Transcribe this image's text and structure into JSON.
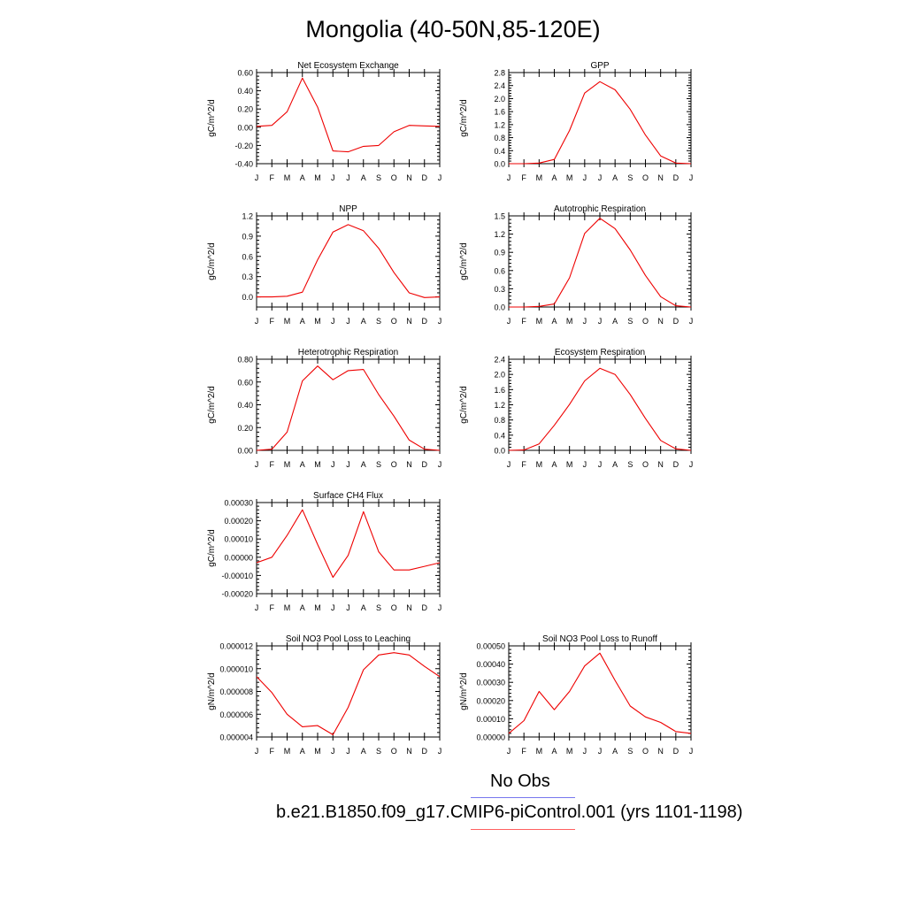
{
  "page": {
    "title": "Mongolia (40-50N,85-120E)"
  },
  "legend": {
    "entries": [
      {
        "label": "No Obs",
        "color": "#7777ee"
      },
      {
        "label": "b.e21.B1850.f09_g17.CMIP6-piControl.001 (yrs 1101-1198)",
        "color": "#ff6060"
      }
    ]
  },
  "line_color": "#ee0000",
  "chart_data": [
    {
      "type": "line",
      "title": "Net Ecosystem Exchange",
      "ylabel": "gC/m^2/d",
      "x": [
        "J",
        "F",
        "M",
        "A",
        "M",
        "J",
        "J",
        "A",
        "S",
        "O",
        "N",
        "D",
        "J"
      ],
      "ylim": [
        -0.4,
        0.6
      ],
      "yticks": [
        "-0.40",
        "-0.20",
        "0.00",
        "0.20",
        "0.40",
        "0.60"
      ],
      "series": [
        {
          "values": [
            0.01,
            0.02,
            0.17,
            0.54,
            0.22,
            -0.26,
            -0.27,
            -0.21,
            -0.2,
            -0.05,
            0.02,
            0.015,
            0.01
          ]
        }
      ]
    },
    {
      "type": "line",
      "title": "GPP",
      "ylabel": "gC/m^2/d",
      "x": [
        "J",
        "F",
        "M",
        "A",
        "M",
        "J",
        "J",
        "A",
        "S",
        "O",
        "N",
        "D",
        "J"
      ],
      "ylim": [
        0.0,
        2.8
      ],
      "yticks": [
        "0.0",
        "0.4",
        "0.8",
        "1.2",
        "1.6",
        "2.0",
        "2.4",
        "2.8"
      ],
      "series": [
        {
          "values": [
            0.0,
            0.0,
            0.02,
            0.13,
            1.02,
            2.17,
            2.52,
            2.27,
            1.67,
            0.88,
            0.24,
            0.02,
            0.0
          ]
        }
      ]
    },
    {
      "type": "line",
      "title": "NPP",
      "ylabel": "gC/m^2/d",
      "x": [
        "J",
        "F",
        "M",
        "A",
        "M",
        "J",
        "J",
        "A",
        "S",
        "O",
        "N",
        "D",
        "J"
      ],
      "ylim": [
        -0.15,
        1.2
      ],
      "yticks": [
        "0.0",
        "0.3",
        "0.6",
        "0.9",
        "1.2"
      ],
      "series": [
        {
          "values": [
            0.0,
            0.0,
            0.01,
            0.07,
            0.55,
            0.96,
            1.07,
            0.98,
            0.72,
            0.36,
            0.06,
            -0.01,
            0.0
          ]
        }
      ]
    },
    {
      "type": "line",
      "title": "Autotrophic Respiration",
      "ylabel": "gC/m^2/d",
      "x": [
        "J",
        "F",
        "M",
        "A",
        "M",
        "J",
        "J",
        "A",
        "S",
        "O",
        "N",
        "D",
        "J"
      ],
      "ylim": [
        0.0,
        1.5
      ],
      "yticks": [
        "0.0",
        "0.3",
        "0.6",
        "0.9",
        "1.2",
        "1.5"
      ],
      "series": [
        {
          "values": [
            0.0,
            0.0,
            0.01,
            0.05,
            0.48,
            1.21,
            1.46,
            1.29,
            0.94,
            0.52,
            0.17,
            0.02,
            0.0
          ]
        }
      ]
    },
    {
      "type": "line",
      "title": "Heterotrophic Respiration",
      "ylabel": "gC/m^2/d",
      "x": [
        "J",
        "F",
        "M",
        "A",
        "M",
        "J",
        "J",
        "A",
        "S",
        "O",
        "N",
        "D",
        "J"
      ],
      "ylim": [
        0.0,
        0.8
      ],
      "yticks": [
        "0.00",
        "0.20",
        "0.40",
        "0.60",
        "0.80"
      ],
      "series": [
        {
          "values": [
            0.0,
            0.01,
            0.16,
            0.61,
            0.74,
            0.62,
            0.7,
            0.71,
            0.49,
            0.3,
            0.09,
            0.01,
            0.0
          ]
        }
      ]
    },
    {
      "type": "line",
      "title": "Ecosystem Respiration",
      "ylabel": "gC/m^2/d",
      "x": [
        "J",
        "F",
        "M",
        "A",
        "M",
        "J",
        "J",
        "A",
        "S",
        "O",
        "N",
        "D",
        "J"
      ],
      "ylim": [
        0.0,
        2.4
      ],
      "yticks": [
        "0.0",
        "0.4",
        "0.8",
        "1.2",
        "1.6",
        "2.0",
        "2.4"
      ],
      "series": [
        {
          "values": [
            0.0,
            0.01,
            0.17,
            0.66,
            1.21,
            1.83,
            2.16,
            2.0,
            1.47,
            0.84,
            0.26,
            0.04,
            0.0
          ]
        }
      ]
    },
    {
      "type": "line",
      "title": "Surface CH4 Flux",
      "ylabel": "gC/m^2/d",
      "x": [
        "J",
        "F",
        "M",
        "A",
        "M",
        "J",
        "J",
        "A",
        "S",
        "O",
        "N",
        "D",
        "J"
      ],
      "ylim": [
        -0.0002,
        0.0003
      ],
      "yticks": [
        "-0.00020",
        "-0.00010",
        "0.00000",
        "0.00010",
        "0.00020",
        "0.00030"
      ],
      "series": [
        {
          "values": [
            -3e-05,
            0.0,
            0.00012,
            0.00026,
            7e-05,
            -0.00011,
            1e-05,
            0.00025,
            3e-05,
            -7e-05,
            -7e-05,
            -5e-05,
            -3e-05
          ]
        }
      ]
    },
    {
      "type": "line",
      "title": "Soil NO3 Pool Loss to Leaching",
      "ylabel": "gN/m^2/d",
      "x": [
        "J",
        "F",
        "M",
        "A",
        "M",
        "J",
        "J",
        "A",
        "S",
        "O",
        "N",
        "D",
        "J"
      ],
      "ylim": [
        4e-06,
        1.2e-05
      ],
      "yticks": [
        "0.000004",
        "0.000006",
        "0.000008",
        "0.000010",
        "0.000012"
      ],
      "series": [
        {
          "values": [
            9.3e-06,
            7.9e-06,
            6e-06,
            4.9e-06,
            5e-06,
            4.2e-06,
            6.6e-06,
            9.9e-06,
            1.12e-05,
            1.14e-05,
            1.12e-05,
            1.02e-05,
            9.3e-06
          ]
        }
      ]
    },
    {
      "type": "line",
      "title": "Soil NO3 Pool Loss to Runoff",
      "ylabel": "gN/m^2/d",
      "x": [
        "J",
        "F",
        "M",
        "A",
        "M",
        "J",
        "J",
        "A",
        "S",
        "O",
        "N",
        "D",
        "J"
      ],
      "ylim": [
        0.0,
        0.0005
      ],
      "yticks": [
        "0.00000",
        "0.00010",
        "0.00020",
        "0.00030",
        "0.00040",
        "0.00050"
      ],
      "series": [
        {
          "values": [
            2e-05,
            9e-05,
            0.00025,
            0.00015,
            0.00025,
            0.00039,
            0.00046,
            0.00031,
            0.00017,
            0.00011,
            8e-05,
            3e-05,
            2e-05
          ]
        }
      ]
    }
  ]
}
